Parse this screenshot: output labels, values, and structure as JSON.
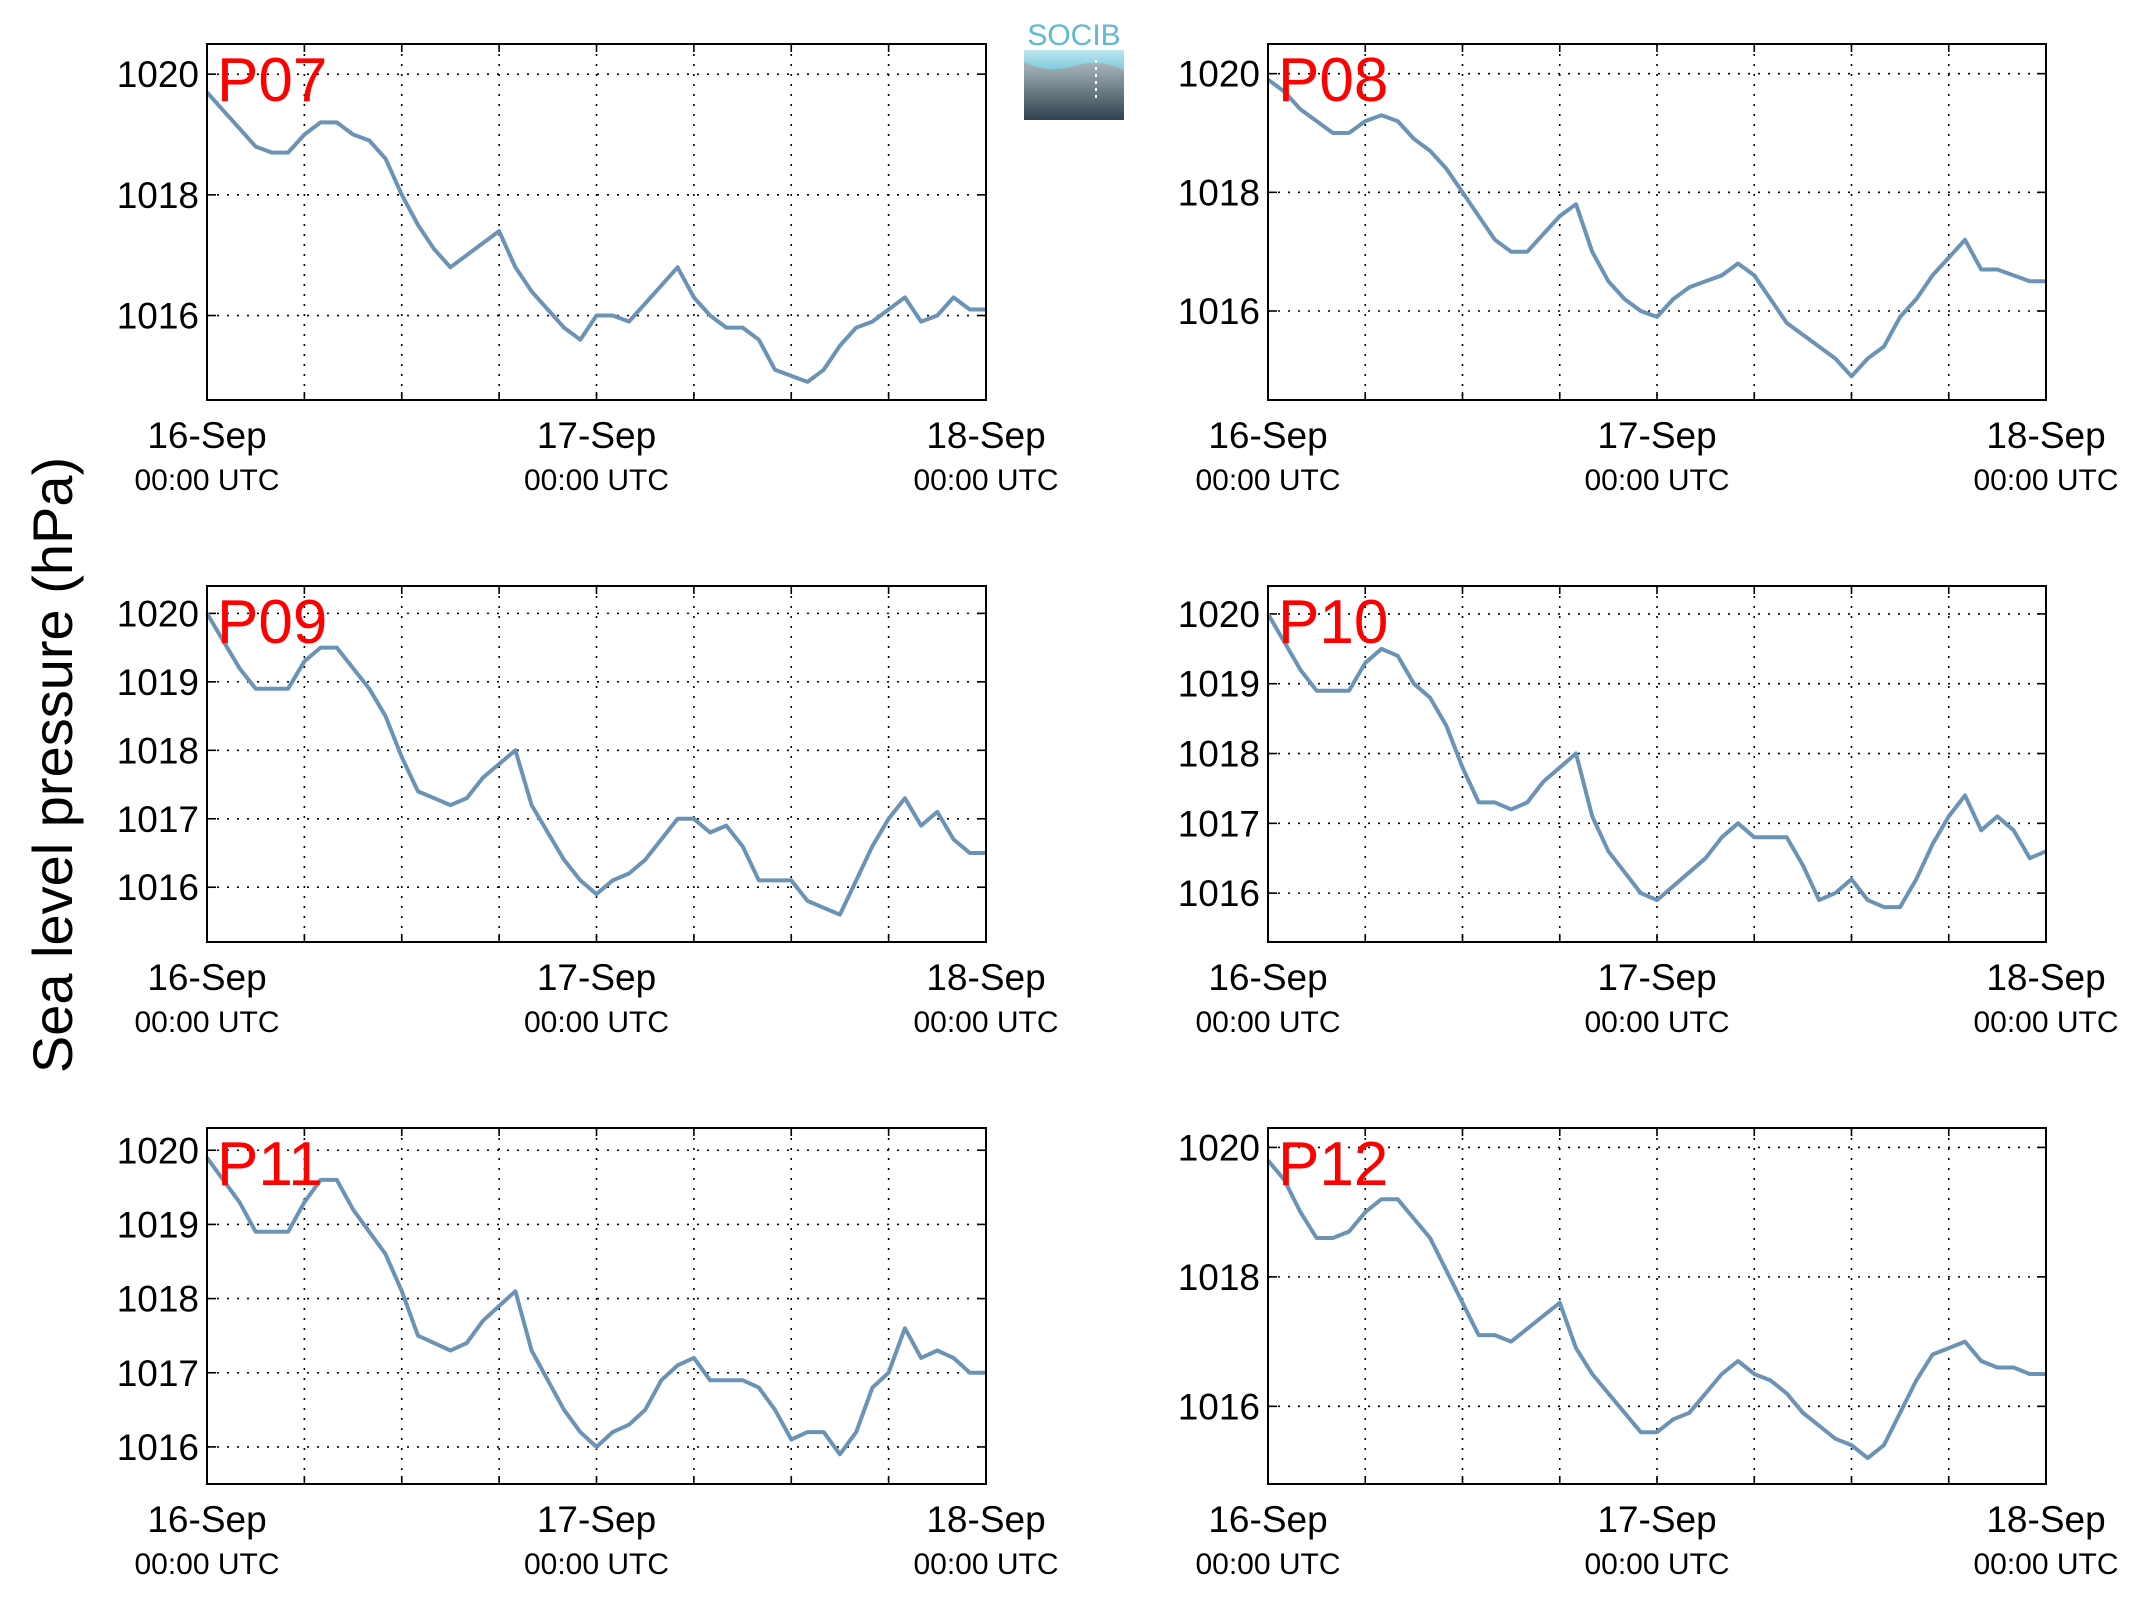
{
  "figure": {
    "ylabel": "Sea level pressure (hPa)",
    "logo_text": "SOCIB",
    "line_color": "#6b93b5",
    "label_color": "#ff0000",
    "grid": true
  },
  "chart_data": [
    {
      "type": "line",
      "title": "P07",
      "xlim": [
        0,
        48
      ],
      "ylim": [
        1014.6,
        1020.5
      ],
      "yticks": [
        1016,
        1018,
        1020
      ],
      "xticks": [
        0,
        24,
        48
      ],
      "xticklabels": [
        [
          "16-Sep",
          "00:00 UTC"
        ],
        [
          "17-Sep",
          "00:00 UTC"
        ],
        [
          "18-Sep",
          "00:00 UTC"
        ]
      ],
      "series": [
        {
          "x": [
            0,
            1,
            2,
            3,
            4,
            5,
            6,
            7,
            8,
            9,
            10,
            11,
            12,
            13,
            14,
            15,
            16,
            17,
            18,
            19,
            20,
            21,
            22,
            23,
            24,
            25,
            26,
            27,
            28,
            29,
            30,
            31,
            32,
            33,
            34,
            35,
            36,
            37,
            38,
            39,
            40,
            41,
            42,
            43,
            44,
            45,
            46,
            47,
            48
          ],
          "values": [
            1019.7,
            1019.4,
            1019.1,
            1018.8,
            1018.7,
            1018.7,
            1019.0,
            1019.2,
            1019.2,
            1019.0,
            1018.9,
            1018.6,
            1018.0,
            1017.5,
            1017.1,
            1016.8,
            1017.0,
            1017.2,
            1017.4,
            1016.8,
            1016.4,
            1016.1,
            1015.8,
            1015.6,
            1016.0,
            1016.0,
            1015.9,
            1016.2,
            1016.5,
            1016.8,
            1016.3,
            1016.0,
            1015.8,
            1015.8,
            1015.6,
            1015.1,
            1015.0,
            1014.9,
            1015.1,
            1015.5,
            1015.8,
            1015.9,
            1016.1,
            1016.3,
            1015.9,
            1016.0,
            1016.3,
            1016.1,
            1016.1
          ]
        }
      ]
    },
    {
      "type": "line",
      "title": "P08",
      "xlim": [
        0,
        48
      ],
      "ylim": [
        1014.5,
        1020.5
      ],
      "yticks": [
        1016,
        1018,
        1020
      ],
      "xticks": [
        0,
        24,
        48
      ],
      "xticklabels": [
        [
          "16-Sep",
          "00:00 UTC"
        ],
        [
          "17-Sep",
          "00:00 UTC"
        ],
        [
          "18-Sep",
          "00:00 UTC"
        ]
      ],
      "series": [
        {
          "x": [
            0,
            1,
            2,
            3,
            4,
            5,
            6,
            7,
            8,
            9,
            10,
            11,
            12,
            13,
            14,
            15,
            16,
            17,
            18,
            19,
            20,
            21,
            22,
            23,
            24,
            25,
            26,
            27,
            28,
            29,
            30,
            31,
            32,
            33,
            34,
            35,
            36,
            37,
            38,
            39,
            40,
            41,
            42,
            43,
            44,
            45,
            46,
            47,
            48
          ],
          "values": [
            1019.9,
            1019.7,
            1019.4,
            1019.2,
            1019.0,
            1019.0,
            1019.2,
            1019.3,
            1019.2,
            1018.9,
            1018.7,
            1018.4,
            1018.0,
            1017.6,
            1017.2,
            1017.0,
            1017.0,
            1017.3,
            1017.6,
            1017.8,
            1017.0,
            1016.5,
            1016.2,
            1016.0,
            1015.9,
            1016.2,
            1016.4,
            1016.5,
            1016.6,
            1016.8,
            1016.6,
            1016.2,
            1015.8,
            1015.6,
            1015.4,
            1015.2,
            1014.9,
            1015.2,
            1015.4,
            1015.9,
            1016.2,
            1016.6,
            1016.9,
            1017.2,
            1016.7,
            1016.7,
            1016.6,
            1016.5,
            1016.5
          ]
        }
      ]
    },
    {
      "type": "line",
      "title": "P09",
      "xlim": [
        0,
        48
      ],
      "ylim": [
        1015.2,
        1020.4
      ],
      "yticks": [
        1016,
        1017,
        1018,
        1019,
        1020
      ],
      "xticks": [
        0,
        24,
        48
      ],
      "xticklabels": [
        [
          "16-Sep",
          "00:00 UTC"
        ],
        [
          "17-Sep",
          "00:00 UTC"
        ],
        [
          "18-Sep",
          "00:00 UTC"
        ]
      ],
      "series": [
        {
          "x": [
            0,
            1,
            2,
            3,
            4,
            5,
            6,
            7,
            8,
            9,
            10,
            11,
            12,
            13,
            14,
            15,
            16,
            17,
            18,
            19,
            20,
            21,
            22,
            23,
            24,
            25,
            26,
            27,
            28,
            29,
            30,
            31,
            32,
            33,
            34,
            35,
            36,
            37,
            38,
            39,
            40,
            41,
            42,
            43,
            44,
            45,
            46,
            47,
            48
          ],
          "values": [
            1020.0,
            1019.6,
            1019.2,
            1018.9,
            1018.9,
            1018.9,
            1019.3,
            1019.5,
            1019.5,
            1019.2,
            1018.9,
            1018.5,
            1017.9,
            1017.4,
            1017.3,
            1017.2,
            1017.3,
            1017.6,
            1017.8,
            1018.0,
            1017.2,
            1016.8,
            1016.4,
            1016.1,
            1015.9,
            1016.1,
            1016.2,
            1016.4,
            1016.7,
            1017.0,
            1017.0,
            1016.8,
            1016.9,
            1016.6,
            1016.1,
            1016.1,
            1016.1,
            1015.8,
            1015.7,
            1015.6,
            1016.1,
            1016.6,
            1017.0,
            1017.3,
            1016.9,
            1017.1,
            1016.7,
            1016.5,
            1016.5
          ]
        }
      ]
    },
    {
      "type": "line",
      "title": "P10",
      "xlim": [
        0,
        48
      ],
      "ylim": [
        1015.3,
        1020.4
      ],
      "yticks": [
        1016,
        1017,
        1018,
        1019,
        1020
      ],
      "xticks": [
        0,
        24,
        48
      ],
      "xticklabels": [
        [
          "16-Sep",
          "00:00 UTC"
        ],
        [
          "17-Sep",
          "00:00 UTC"
        ],
        [
          "18-Sep",
          "00:00 UTC"
        ]
      ],
      "series": [
        {
          "x": [
            0,
            1,
            2,
            3,
            4,
            5,
            6,
            7,
            8,
            9,
            10,
            11,
            12,
            13,
            14,
            15,
            16,
            17,
            18,
            19,
            20,
            21,
            22,
            23,
            24,
            25,
            26,
            27,
            28,
            29,
            30,
            31,
            32,
            33,
            34,
            35,
            36,
            37,
            38,
            39,
            40,
            41,
            42,
            43,
            44,
            45,
            46,
            47,
            48
          ],
          "values": [
            1020.0,
            1019.6,
            1019.2,
            1018.9,
            1018.9,
            1018.9,
            1019.3,
            1019.5,
            1019.4,
            1019.0,
            1018.8,
            1018.4,
            1017.8,
            1017.3,
            1017.3,
            1017.2,
            1017.3,
            1017.6,
            1017.8,
            1018.0,
            1017.1,
            1016.6,
            1016.3,
            1016.0,
            1015.9,
            1016.1,
            1016.3,
            1016.5,
            1016.8,
            1017.0,
            1016.8,
            1016.8,
            1016.8,
            1016.4,
            1015.9,
            1016.0,
            1016.2,
            1015.9,
            1015.8,
            1015.8,
            1016.2,
            1016.7,
            1017.1,
            1017.4,
            1016.9,
            1017.1,
            1016.9,
            1016.5,
            1016.6
          ]
        }
      ]
    },
    {
      "type": "line",
      "title": "P11",
      "xlim": [
        0,
        48
      ],
      "ylim": [
        1015.5,
        1020.3
      ],
      "yticks": [
        1016,
        1017,
        1018,
        1019,
        1020
      ],
      "xticks": [
        0,
        24,
        48
      ],
      "xticklabels": [
        [
          "16-Sep",
          "00:00 UTC"
        ],
        [
          "17-Sep",
          "00:00 UTC"
        ],
        [
          "18-Sep",
          "00:00 UTC"
        ]
      ],
      "series": [
        {
          "x": [
            0,
            1,
            2,
            3,
            4,
            5,
            6,
            7,
            8,
            9,
            10,
            11,
            12,
            13,
            14,
            15,
            16,
            17,
            18,
            19,
            20,
            21,
            22,
            23,
            24,
            25,
            26,
            27,
            28,
            29,
            30,
            31,
            32,
            33,
            34,
            35,
            36,
            37,
            38,
            39,
            40,
            41,
            42,
            43,
            44,
            45,
            46,
            47,
            48
          ],
          "values": [
            1019.9,
            1019.6,
            1019.3,
            1018.9,
            1018.9,
            1018.9,
            1019.3,
            1019.6,
            1019.6,
            1019.2,
            1018.9,
            1018.6,
            1018.1,
            1017.5,
            1017.4,
            1017.3,
            1017.4,
            1017.7,
            1017.9,
            1018.1,
            1017.3,
            1016.9,
            1016.5,
            1016.2,
            1016.0,
            1016.2,
            1016.3,
            1016.5,
            1016.9,
            1017.1,
            1017.2,
            1016.9,
            1016.9,
            1016.9,
            1016.8,
            1016.5,
            1016.1,
            1016.2,
            1016.2,
            1015.9,
            1016.2,
            1016.8,
            1017.0,
            1017.6,
            1017.2,
            1017.3,
            1017.2,
            1017.0,
            1017.0
          ]
        }
      ]
    },
    {
      "type": "line",
      "title": "P12",
      "xlim": [
        0,
        48
      ],
      "ylim": [
        1014.8,
        1020.3
      ],
      "yticks": [
        1016,
        1018,
        1020
      ],
      "xticks": [
        0,
        24,
        48
      ],
      "xticklabels": [
        [
          "16-Sep",
          "00:00 UTC"
        ],
        [
          "17-Sep",
          "00:00 UTC"
        ],
        [
          "18-Sep",
          "00:00 UTC"
        ]
      ],
      "series": [
        {
          "x": [
            0,
            1,
            2,
            3,
            4,
            5,
            6,
            7,
            8,
            9,
            10,
            11,
            12,
            13,
            14,
            15,
            16,
            17,
            18,
            19,
            20,
            21,
            22,
            23,
            24,
            25,
            26,
            27,
            28,
            29,
            30,
            31,
            32,
            33,
            34,
            35,
            36,
            37,
            38,
            39,
            40,
            41,
            42,
            43,
            44,
            45,
            46,
            47,
            48
          ],
          "values": [
            1019.8,
            1019.5,
            1019.0,
            1018.6,
            1018.6,
            1018.7,
            1019.0,
            1019.2,
            1019.2,
            1018.9,
            1018.6,
            1018.1,
            1017.6,
            1017.1,
            1017.1,
            1017.0,
            1017.2,
            1017.4,
            1017.6,
            1016.9,
            1016.5,
            1016.2,
            1015.9,
            1015.6,
            1015.6,
            1015.8,
            1015.9,
            1016.2,
            1016.5,
            1016.7,
            1016.5,
            1016.4,
            1016.2,
            1015.9,
            1015.7,
            1015.5,
            1015.4,
            1015.2,
            1015.4,
            1015.9,
            1016.4,
            1016.8,
            1016.9,
            1017.0,
            1016.7,
            1016.6,
            1016.6,
            1016.5,
            1016.5
          ]
        }
      ]
    }
  ]
}
